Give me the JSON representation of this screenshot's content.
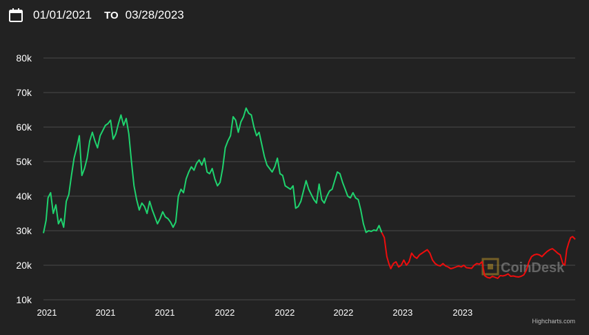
{
  "range": {
    "from": "01/01/2021",
    "to_label": "TO",
    "to": "03/28/2023"
  },
  "watermark": "CoinDesk",
  "credits": "Highcharts.com",
  "colors": {
    "background": "#222222",
    "grid": "#4a4a4a",
    "up": "#1fd36e",
    "down": "#ee0d0d",
    "text": "#ffffff"
  },
  "chart_data": {
    "type": "line",
    "title": "",
    "xlabel": "",
    "ylabel": "",
    "ylim": [
      10000,
      80000
    ],
    "yticks": [
      10000,
      20000,
      30000,
      40000,
      50000,
      60000,
      70000,
      80000
    ],
    "ytick_labels": [
      "10k",
      "20k",
      "30k",
      "40k",
      "50k",
      "60k",
      "70k",
      "80k"
    ],
    "xlim": [
      "2021-01-01",
      "2023-03-28"
    ],
    "xticks": [
      "2021-01-01",
      "2021-04-01",
      "2021-07-01",
      "2021-10-01",
      "2022-01-01",
      "2022-04-01",
      "2022-07-01",
      "2022-10-01"
    ],
    "xtick_labels": [
      "2021",
      "2021",
      "2021",
      "2022",
      "2022",
      "2022",
      "2023",
      "2023"
    ],
    "grid": true,
    "series": [
      {
        "color": "#1fd36e",
        "x": [
          "2021-01-01",
          "2021-01-05",
          "2021-01-08",
          "2021-01-12",
          "2021-01-16",
          "2021-01-20",
          "2021-01-24",
          "2021-01-28",
          "2021-02-01",
          "2021-02-05",
          "2021-02-09",
          "2021-02-13",
          "2021-02-17",
          "2021-02-21",
          "2021-02-25",
          "2021-03-01",
          "2021-03-05",
          "2021-03-09",
          "2021-03-13",
          "2021-03-17",
          "2021-03-21",
          "2021-03-25",
          "2021-03-29",
          "2021-04-02",
          "2021-04-06",
          "2021-04-10",
          "2021-04-14",
          "2021-04-18",
          "2021-04-22",
          "2021-04-26",
          "2021-04-30",
          "2021-05-04",
          "2021-05-08",
          "2021-05-12",
          "2021-05-16",
          "2021-05-20",
          "2021-05-24",
          "2021-05-28",
          "2021-06-01",
          "2021-06-05",
          "2021-06-09",
          "2021-06-13",
          "2021-06-17",
          "2021-06-21",
          "2021-06-25",
          "2021-06-29",
          "2021-07-03",
          "2021-07-07",
          "2021-07-11",
          "2021-07-15",
          "2021-07-19",
          "2021-07-23",
          "2021-07-27",
          "2021-07-31",
          "2021-08-04",
          "2021-08-08",
          "2021-08-12",
          "2021-08-16",
          "2021-08-20",
          "2021-08-24",
          "2021-08-28",
          "2021-09-01",
          "2021-09-05",
          "2021-09-09",
          "2021-09-13",
          "2021-09-17",
          "2021-09-21",
          "2021-09-25",
          "2021-09-29",
          "2021-10-03",
          "2021-10-07",
          "2021-10-11",
          "2021-10-15",
          "2021-10-19",
          "2021-10-23",
          "2021-10-27",
          "2021-10-31",
          "2021-11-04",
          "2021-11-08",
          "2021-11-12",
          "2021-11-16",
          "2021-11-20",
          "2021-11-24",
          "2021-11-28",
          "2021-12-02",
          "2021-12-06",
          "2021-12-10",
          "2021-12-14",
          "2021-12-18",
          "2021-12-22",
          "2021-12-26",
          "2021-12-30",
          "2022-01-03",
          "2022-01-07",
          "2022-01-11",
          "2022-01-15",
          "2022-01-19",
          "2022-01-23",
          "2022-01-27",
          "2022-01-31",
          "2022-02-04",
          "2022-02-08",
          "2022-02-12",
          "2022-02-16",
          "2022-02-20",
          "2022-02-24",
          "2022-02-28",
          "2022-03-04",
          "2022-03-08",
          "2022-03-12",
          "2022-03-16",
          "2022-03-20",
          "2022-03-24",
          "2022-03-28",
          "2022-04-01",
          "2022-04-05",
          "2022-04-09",
          "2022-04-13",
          "2022-04-17",
          "2022-04-21",
          "2022-04-25",
          "2022-04-29",
          "2022-05-03",
          "2022-05-07",
          "2022-05-11",
          "2022-05-15",
          "2022-05-19",
          "2022-05-23",
          "2022-05-27",
          "2022-05-31",
          "2022-06-04"
        ],
        "y": [
          29300,
          33000,
          39500,
          41000,
          35000,
          37500,
          32000,
          33500,
          31000,
          38500,
          40500,
          46000,
          51000,
          54000,
          57500,
          46000,
          48000,
          51000,
          56000,
          58500,
          56000,
          54000,
          57500,
          59000,
          60500,
          61000,
          62000,
          56500,
          58000,
          61000,
          63500,
          60500,
          62500,
          58000,
          50000,
          43000,
          39000,
          36000,
          38000,
          37000,
          35000,
          38500,
          36000,
          34000,
          32000,
          33500,
          35500,
          34000,
          33500,
          32500,
          31000,
          32500,
          40000,
          42000,
          41000,
          45000,
          47000,
          48500,
          47500,
          49500,
          50500,
          49000,
          51000,
          47000,
          46500,
          48000,
          45000,
          43000,
          44000,
          48000,
          54000,
          56000,
          57500,
          63000,
          62000,
          58500,
          61500,
          63000,
          65500,
          64000,
          63500,
          60000,
          57500,
          58500,
          55000,
          51500,
          49000,
          48000,
          47000,
          48500,
          51000,
          46500,
          46000,
          43000,
          42500,
          42000,
          43000,
          36500,
          37000,
          38500,
          41500,
          44500,
          42000,
          40500,
          39000,
          38000,
          43500,
          39000,
          38000,
          40000,
          41500,
          42000,
          44500,
          47000,
          46500,
          44000,
          42000,
          40000,
          39500,
          41000,
          39500,
          39000,
          36000,
          32000,
          29500,
          30000,
          29800,
          30200,
          30000,
          31500,
          29500
        ]
      },
      {
        "color": "#ee0d0d",
        "x": [
          "2022-06-04",
          "2022-06-08",
          "2022-06-12",
          "2022-06-15",
          "2022-06-18",
          "2022-06-22",
          "2022-06-26",
          "2022-06-30",
          "2022-07-04",
          "2022-07-08",
          "2022-07-12",
          "2022-07-16",
          "2022-07-20",
          "2022-07-24",
          "2022-07-28",
          "2022-08-01",
          "2022-08-05",
          "2022-08-09",
          "2022-08-13",
          "2022-08-17",
          "2022-08-21",
          "2022-08-25",
          "2022-08-29",
          "2022-09-02",
          "2022-09-06",
          "2022-09-10",
          "2022-09-14",
          "2022-09-18",
          "2022-09-22",
          "2022-09-26",
          "2022-09-30",
          "2022-10-04",
          "2022-10-08",
          "2022-10-12",
          "2022-10-16",
          "2022-10-20",
          "2022-10-24",
          "2022-10-28",
          "2022-11-01",
          "2022-11-05",
          "2022-11-09",
          "2022-11-13",
          "2022-11-17",
          "2022-11-21",
          "2022-11-25",
          "2022-11-29",
          "2022-12-03",
          "2022-12-07",
          "2022-12-11",
          "2022-12-15",
          "2022-12-19",
          "2022-12-23",
          "2022-12-27",
          "2022-12-31",
          "2023-01-04",
          "2023-01-08",
          "2023-01-12",
          "2023-01-16",
          "2023-01-20",
          "2023-01-24",
          "2023-01-28",
          "2023-02-01",
          "2023-02-05",
          "2023-02-09",
          "2023-02-13",
          "2023-02-17",
          "2023-02-21",
          "2023-02-25",
          "2023-03-01",
          "2023-03-05",
          "2023-03-09",
          "2023-03-12",
          "2023-03-15",
          "2023-03-18",
          "2023-03-21",
          "2023-03-24",
          "2023-03-28"
        ],
        "y": [
          29500,
          28000,
          22500,
          20500,
          19000,
          20500,
          21000,
          19500,
          20000,
          21500,
          20000,
          21000,
          23500,
          22500,
          22000,
          23000,
          23500,
          24000,
          24500,
          23500,
          21500,
          20500,
          20000,
          19800,
          20500,
          19800,
          19500,
          19000,
          19200,
          19500,
          19800,
          19500,
          20000,
          19300,
          19200,
          19100,
          20000,
          20500,
          20300,
          21000,
          17000,
          16500,
          16300,
          16800,
          16500,
          16200,
          17000,
          16900,
          17100,
          17500,
          16800,
          16900,
          16700,
          16600,
          16800,
          17200,
          18500,
          21000,
          22500,
          23000,
          23200,
          23000,
          22500,
          23300,
          24000,
          24500,
          24800,
          24200,
          23500,
          23000,
          20500,
          20000,
          24500,
          26500,
          28000,
          28300,
          27500
        ]
      }
    ]
  }
}
